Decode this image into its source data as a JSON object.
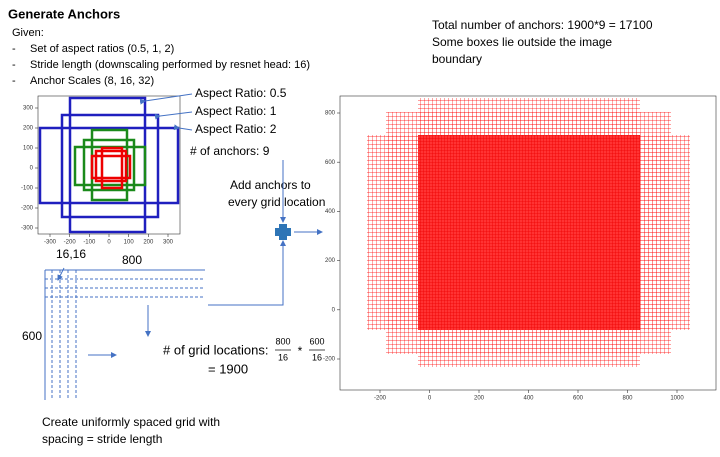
{
  "title": "Generate Anchors",
  "given": "Given:",
  "bullet_marker": "-",
  "bullets": [
    "Set of aspect ratios (0.5, 1, 2)",
    "Stride length (downscaling performed by resnet head: 16)",
    "Anchor Scales (8, 16, 32)"
  ],
  "left_plot": {
    "xticks": [
      -300,
      -200,
      -100,
      0,
      100,
      200,
      300
    ],
    "yticks": [
      300,
      200,
      100,
      0,
      -100,
      -200,
      -300
    ]
  },
  "aspect_labels": [
    "Aspect Ratio: 0.5",
    "Aspect Ratio: 1",
    "Aspect Ratio: 2"
  ],
  "anchor_count": "# of anchors: 9",
  "add_anchors": [
    "Add anchors to",
    "every grid location"
  ],
  "grid": {
    "origin": "16,16",
    "width": "800",
    "height": "600",
    "locations_label": "# of grid locations:",
    "fraction_1": {
      "numerator": "800",
      "denominator": "16"
    },
    "operator": "*",
    "fraction_2": {
      "numerator": "600",
      "denominator": "16"
    },
    "result": "= 1900",
    "caption": [
      "Create uniformly spaced grid with",
      "spacing = stride length"
    ]
  },
  "right_plot": {
    "notes": [
      "Total number of anchors: 1900*9 = 17100",
      "Some boxes lie outside the image",
      "boundary"
    ],
    "xticks": [
      -200,
      0,
      200,
      400,
      600,
      800,
      1000
    ],
    "yticks": [
      800,
      600,
      400,
      200,
      0,
      -200
    ]
  }
}
